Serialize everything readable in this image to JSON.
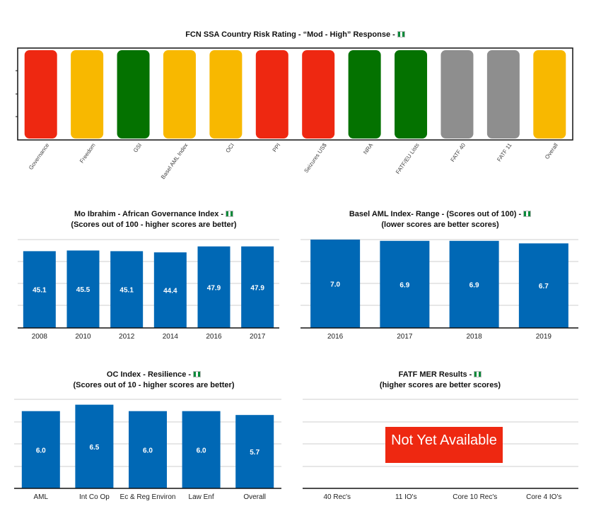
{
  "chart_data": [
    {
      "id": "risk",
      "type": "bar",
      "title": "FCN SSA Country Risk Rating - “Mod - High” Response -",
      "categories": [
        "Governance",
        "Freedom",
        "GSI",
        "Basel AML Index",
        "OCI",
        "PPI",
        "Seizures US$",
        "NRA",
        "FATF/EU Lists",
        "FATF 40",
        "FATF 11",
        "Overall"
      ],
      "colors": [
        "#ee2811",
        "#f8b800",
        "#047200",
        "#f8b800",
        "#f8b800",
        "#ee2811",
        "#ee2811",
        "#047200",
        "#047200",
        "#8e8e8e",
        "#8e8e8e",
        "#f8b800"
      ]
    },
    {
      "id": "ibrahim",
      "type": "bar",
      "title": "Mo Ibrahim - African Governance Index -",
      "subtitle": "(Scores out of 100 - higher scores are better)",
      "categories": [
        "2008",
        "2010",
        "2012",
        "2014",
        "2016",
        "2017"
      ],
      "values": [
        45.1,
        45.5,
        45.1,
        44.4,
        47.9,
        47.9
      ],
      "labels": [
        "45.1",
        "45.5",
        "45.1",
        "44.4",
        "47.9",
        "47.9"
      ],
      "ylim": [
        0,
        50
      ],
      "color": "#0068b5"
    },
    {
      "id": "basel",
      "type": "bar",
      "title": "Basel AML Index- Range - (Scores out of 100) -",
      "subtitle": "(lower scores are better scores)",
      "categories": [
        "2016",
        "2017",
        "2018",
        "2019"
      ],
      "values": [
        7.0,
        6.9,
        6.9,
        6.7
      ],
      "labels": [
        "7.0",
        "6.9",
        "6.9",
        "6.7"
      ],
      "ylim": [
        0,
        7
      ],
      "color": "#0068b5"
    },
    {
      "id": "oc",
      "type": "bar",
      "title": "OC Index - Resilience  -",
      "subtitle": "(Scores out of 10 - higher scores are better)",
      "categories": [
        "AML",
        "Int Co Op",
        "Ec & Reg Environ",
        "Law Enf",
        "Overall"
      ],
      "values": [
        6.0,
        6.5,
        6.0,
        6.0,
        5.7
      ],
      "labels": [
        "6.0",
        "6.5",
        "6.0",
        "6.0",
        "5.7"
      ],
      "ylim": [
        0,
        7
      ],
      "color": "#0068b5"
    },
    {
      "id": "fatf",
      "type": "bar",
      "title": "FATF MER Results -",
      "subtitle": "(higher scores are better scores)",
      "categories": [
        "40 Rec's",
        "11 IO's",
        "Core 10 Rec's",
        "Core 4 IO's"
      ],
      "annotation": "Not Yet Available",
      "annotation_color": "#ee2811"
    }
  ]
}
